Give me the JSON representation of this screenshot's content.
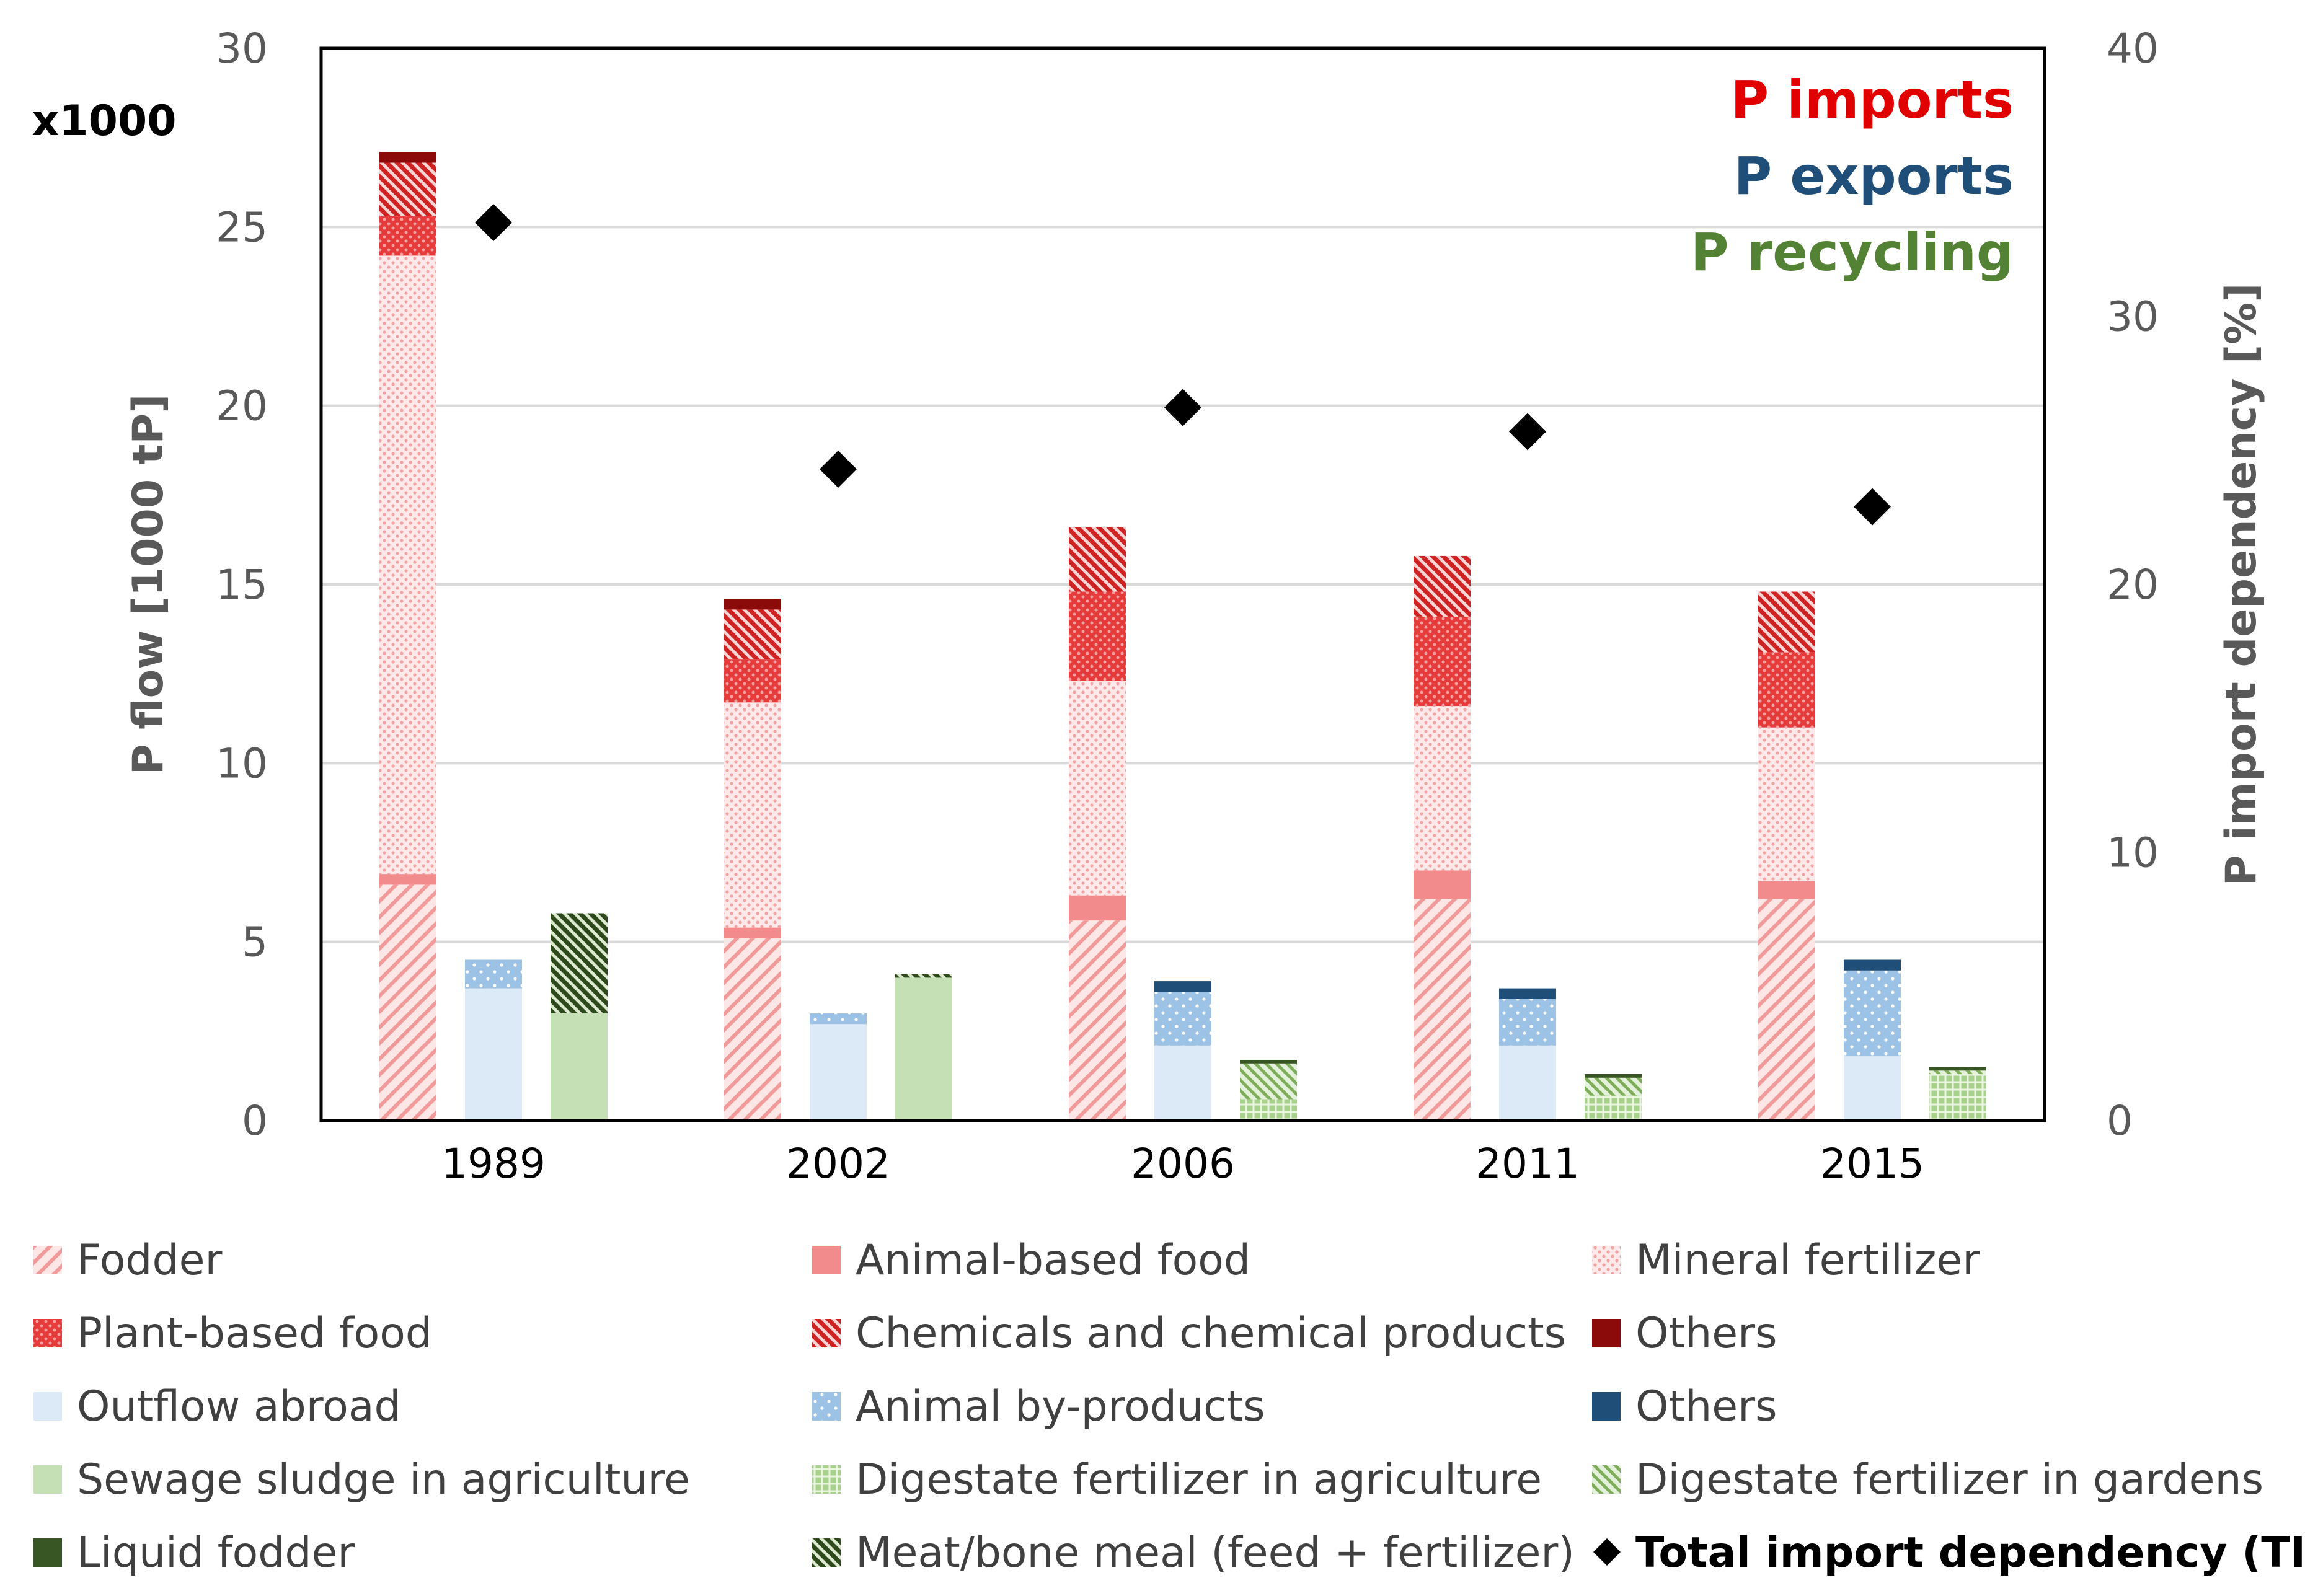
{
  "chart_data": {
    "type": "bar",
    "stacked": true,
    "grouped": true,
    "categories": [
      "1989",
      "2002",
      "2006",
      "2011",
      "2015"
    ],
    "groups": [
      {
        "key": "imports",
        "title": "P imports",
        "series": [
          {
            "name": "Fodder",
            "values": [
              6.6,
              5.1,
              5.6,
              6.2,
              6.2
            ],
            "color": "#f4a6a6",
            "pattern": "hatch-light"
          },
          {
            "name": "Animal-based food",
            "values": [
              0.3,
              0.3,
              0.7,
              0.8,
              0.5
            ],
            "color": "#f28b8b",
            "pattern": "solid"
          },
          {
            "name": "Mineral fertilizer",
            "values": [
              17.3,
              6.3,
              6.0,
              4.6,
              4.3
            ],
            "color": "#f4b6b6",
            "pattern": "dots"
          },
          {
            "name": "Plant-based food",
            "values": [
              1.1,
              1.2,
              2.5,
              2.5,
              2.1
            ],
            "color": "#e83e3e",
            "pattern": "dense-dots"
          },
          {
            "name": "Chemicals and chemical products",
            "values": [
              1.5,
              1.4,
              1.8,
              1.7,
              1.7
            ],
            "color": "#cf2a2a",
            "pattern": "hatch-dense"
          },
          {
            "name": "Others",
            "values": [
              0.3,
              0.3,
              0.0,
              0.0,
              0.0
            ],
            "color": "#8b0a0a",
            "pattern": "solid"
          }
        ]
      },
      {
        "key": "exports",
        "title": "P exports",
        "series": [
          {
            "name": "Outflow abroad",
            "values": [
              3.7,
              2.7,
              2.1,
              2.1,
              1.8
            ],
            "color": "#dce9f6",
            "pattern": "solid"
          },
          {
            "name": "Animal by-products",
            "values": [
              0.8,
              0.3,
              1.5,
              1.3,
              2.4
            ],
            "color": "#9cc3e6",
            "pattern": "dots"
          },
          {
            "name": "Others",
            "values": [
              0.0,
              0.0,
              0.3,
              0.3,
              0.3
            ],
            "color": "#1f4e79",
            "pattern": "solid"
          }
        ]
      },
      {
        "key": "recycling",
        "title": "P recycling",
        "series": [
          {
            "name": "Sewage sludge in agriculture",
            "values": [
              3.0,
              4.0,
              0.0,
              0.0,
              0.0
            ],
            "color": "#c5e0b4",
            "pattern": "solid"
          },
          {
            "name": "Digestate fertilizer in agriculture",
            "values": [
              0.0,
              0.0,
              0.6,
              0.7,
              1.3
            ],
            "color": "#a9d18e",
            "pattern": "grid"
          },
          {
            "name": "Digestate fertilizer in gardens",
            "values": [
              0.0,
              0.0,
              1.0,
              0.5,
              0.1
            ],
            "color": "#a9d18e",
            "pattern": "hatch-light"
          },
          {
            "name": "Liquid fodder",
            "values": [
              0.0,
              0.0,
              0.1,
              0.1,
              0.1
            ],
            "color": "#375623",
            "pattern": "solid"
          },
          {
            "name": "Meat/bone meal (feed + fertilizer)",
            "values": [
              2.8,
              0.1,
              0.0,
              0.0,
              0.0
            ],
            "color": "#375623",
            "pattern": "hatch-dense-dark"
          }
        ]
      }
    ],
    "tid": {
      "name": "Total import dependency (TID)",
      "values": [
        33.5,
        24.3,
        26.6,
        25.7,
        22.9
      ],
      "color": "#000000"
    },
    "ylabel": "P flow [1000 tP]",
    "ylim": [
      0,
      30
    ],
    "yticks": [
      0,
      5,
      10,
      15,
      20,
      25,
      30
    ],
    "y_multiplier": "x1000",
    "y2label": "P import dependency [%]",
    "y2lim": [
      0,
      40
    ],
    "y2ticks": [
      0,
      10,
      20,
      30,
      40
    ],
    "group_title_colors": {
      "imports": "#e00000",
      "exports": "#1f4e79",
      "recycling": "#548235"
    },
    "legend": {
      "placement": "bottom",
      "items": [
        {
          "label": "Fodder",
          "color": "#f4a6a6",
          "pattern": "hatch-light"
        },
        {
          "label": "Animal-based food",
          "color": "#f28b8b",
          "pattern": "solid"
        },
        {
          "label": "Mineral fertilizer",
          "color": "#f4b6b6",
          "pattern": "dots"
        },
        {
          "label": "Plant-based food",
          "color": "#e83e3e",
          "pattern": "dense-dots"
        },
        {
          "label": "Chemicals and chemical products",
          "color": "#cf2a2a",
          "pattern": "hatch-dense"
        },
        {
          "label": "Others",
          "color": "#8b0a0a",
          "pattern": "solid"
        },
        {
          "label": "Outflow abroad",
          "color": "#dce9f6",
          "pattern": "solid"
        },
        {
          "label": "Animal by-products",
          "color": "#9cc3e6",
          "pattern": "dots"
        },
        {
          "label": "Others",
          "color": "#1f4e79",
          "pattern": "solid"
        },
        {
          "label": "Sewage sludge in agriculture",
          "color": "#c5e0b4",
          "pattern": "solid"
        },
        {
          "label": "Digestate fertilizer in agriculture",
          "color": "#a9d18e",
          "pattern": "grid"
        },
        {
          "label": "Digestate fertilizer in gardens",
          "color": "#a9d18e",
          "pattern": "hatch-light"
        },
        {
          "label": "Liquid fodder",
          "color": "#375623",
          "pattern": "solid"
        },
        {
          "label": "Meat/bone meal (feed + fertilizer)",
          "color": "#375623",
          "pattern": "hatch-dense-dark"
        },
        {
          "label": "Total import dependency (TID)",
          "color": "#000000",
          "pattern": "diamond",
          "bold": true
        }
      ]
    }
  }
}
